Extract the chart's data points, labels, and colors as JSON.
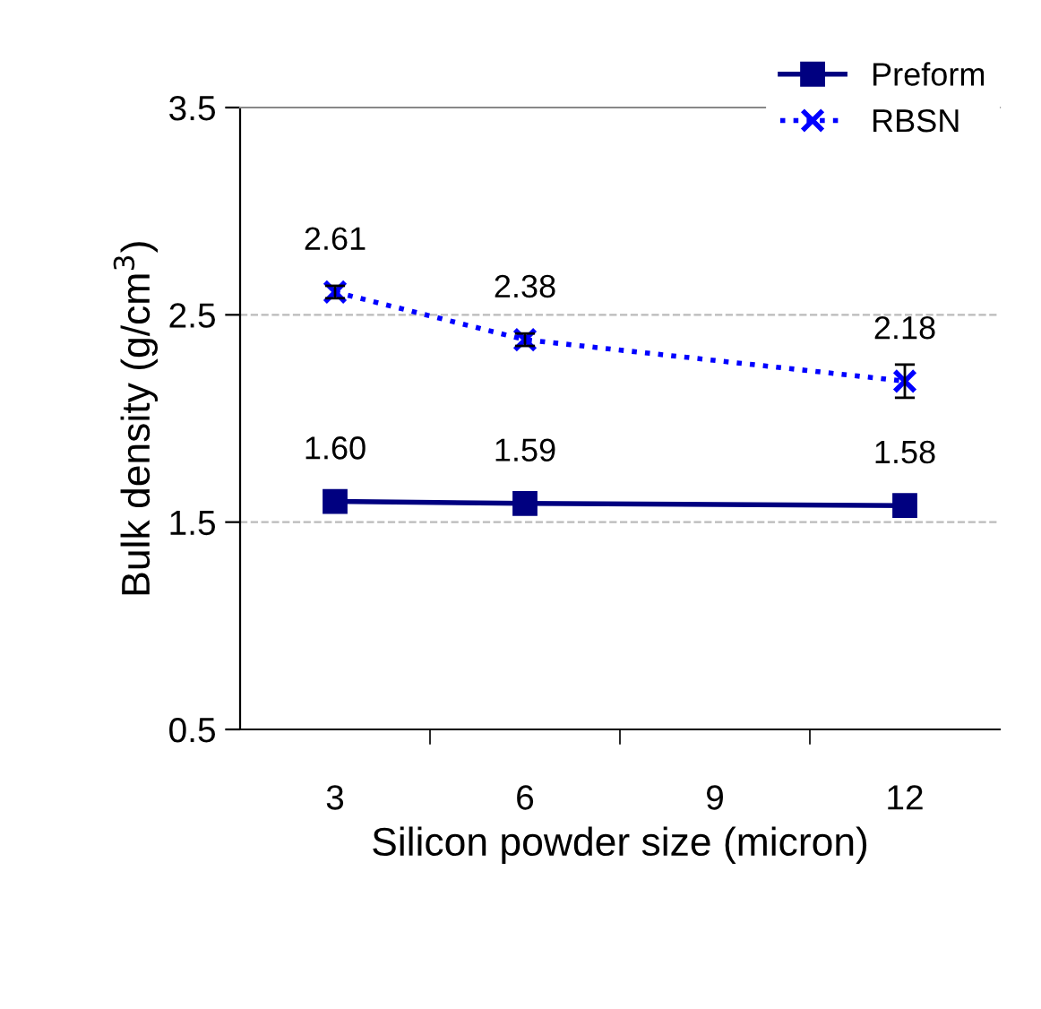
{
  "chart_data": {
    "type": "line",
    "xlabel": "Silicon powder size (micron)",
    "ylabel": "Bulk density (g/cm$^{3}$)",
    "x": [
      3,
      6,
      12
    ],
    "series": [
      {
        "name": "Preform",
        "color": "#000080",
        "values": [
          1.6,
          1.59,
          1.58
        ],
        "value_labels": [
          "1.60",
          "1.59",
          "1.58"
        ],
        "marker": "square",
        "line_style": "solid"
      },
      {
        "name": "RBSN",
        "color": "#0000ff",
        "values": [
          2.61,
          2.38,
          2.18
        ],
        "value_labels": [
          "2.61",
          "2.38",
          "2.18"
        ],
        "marker": "cross",
        "line_style": "dotted",
        "errors": [
          0.03,
          0.03,
          0.08
        ]
      }
    ],
    "xlim": [
      1.5,
      13.5
    ],
    "xticks": [
      3,
      6,
      9,
      12,
      {
        "value": 4.5,
        "label": null
      },
      {
        "value": 7.5,
        "label": null
      },
      {
        "value": 10.5,
        "label": null
      }
    ],
    "ylim": [
      0.5,
      3.5
    ],
    "yticks": [
      0.5,
      1.5,
      2.5,
      3.5
    ],
    "grid": "y",
    "legend": "top right"
  }
}
